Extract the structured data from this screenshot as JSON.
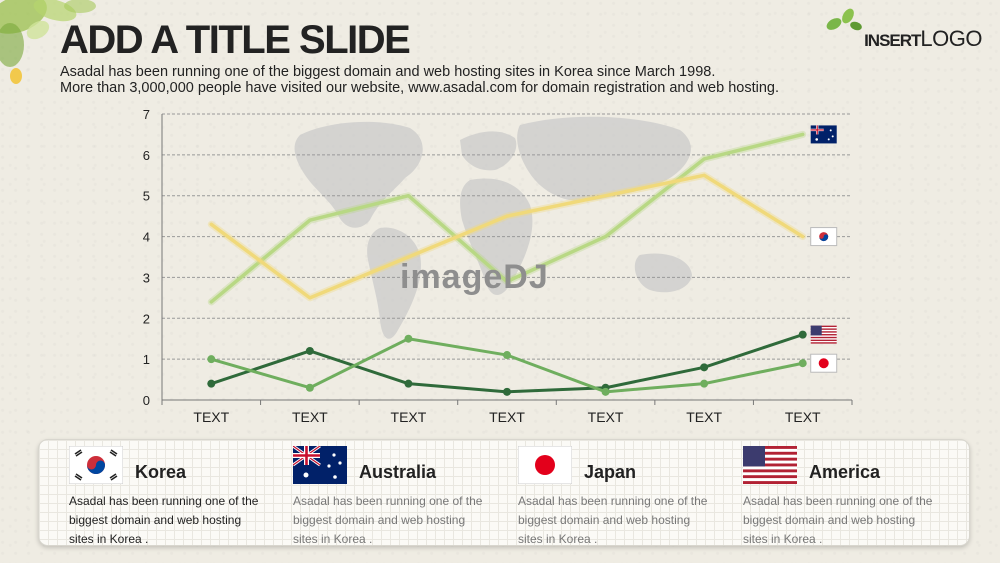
{
  "header": {
    "title": "ADD A TITLE SLIDE",
    "subtitle_line1": "Asadal has been running one of the biggest domain and web hosting sites in Korea since March 1998.",
    "subtitle_line2": "More than 3,000,000 people have visited our website,  www.asadal.com for domain registration and web hosting."
  },
  "logo": {
    "insert": "INSERT",
    "logo": "LOGO"
  },
  "watermark": "imageDJ",
  "chart_data": {
    "type": "line",
    "categories": [
      "TEXT",
      "TEXT",
      "TEXT",
      "TEXT",
      "TEXT",
      "TEXT",
      "TEXT"
    ],
    "ylim": [
      0,
      7
    ],
    "yticks": [
      "0",
      "1",
      "2",
      "3",
      "4",
      "5",
      "6",
      "7"
    ],
    "grid": true,
    "series": [
      {
        "flag": "australia",
        "color": "#b8d884",
        "values": [
          2.4,
          4.4,
          5.0,
          2.9,
          4.0,
          5.9,
          6.5
        ]
      },
      {
        "flag": "korea",
        "color": "#f0d97a",
        "values": [
          4.3,
          2.5,
          3.5,
          4.5,
          5.0,
          5.5,
          4.0
        ]
      },
      {
        "flag": "usa",
        "color": "#2f6a3a",
        "values": [
          0.4,
          1.2,
          0.4,
          0.2,
          0.3,
          0.8,
          1.6
        ]
      },
      {
        "flag": "japan",
        "color": "#6fae5e",
        "values": [
          1.0,
          0.3,
          1.5,
          1.1,
          0.2,
          0.4,
          0.9
        ]
      }
    ]
  },
  "countries": [
    {
      "flag": "korea",
      "name": "Korea",
      "desc": "Asadal has been running one of the biggest domain and web hosting sites in Korea ."
    },
    {
      "flag": "australia",
      "name": "Australia",
      "desc": "Asadal has been running one of the biggest domain and web hosting sites in Korea ."
    },
    {
      "flag": "japan",
      "name": "Japan",
      "desc": "Asadal has been running one of the biggest domain and web hosting sites in Korea ."
    },
    {
      "flag": "usa",
      "name": "America",
      "desc": "Asadal has been running one of the biggest domain and web hosting sites in Korea ."
    }
  ]
}
